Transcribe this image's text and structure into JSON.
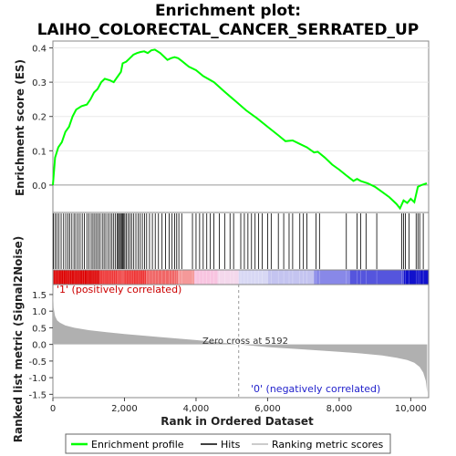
{
  "chart_data": {
    "type": "line",
    "title_line1": "Enrichment plot:",
    "title_line2": "LAIHO_COLORECTAL_CANCER_SERRATED_UP",
    "xlabel": "Rank in Ordered Dataset",
    "ylabel_es": "Enrichment score (ES)",
    "ylabel_metric": "Ranked list metric (Signal2Noise)",
    "xlim": [
      0,
      10500
    ],
    "es_ylim": [
      -0.08,
      0.42
    ],
    "metric_ylim": [
      -1.6,
      1.8
    ],
    "x_ticks": [
      0,
      2000,
      4000,
      6000,
      8000,
      10000
    ],
    "x_tick_labels": [
      "0",
      "2,000",
      "4,000",
      "6,000",
      "8,000",
      "10,000"
    ],
    "es_ticks": [
      0.0,
      0.1,
      0.2,
      0.3,
      0.4
    ],
    "es_tick_labels": [
      "0.0",
      "0.1",
      "0.2",
      "0.3",
      "0.4"
    ],
    "metric_ticks": [
      -1.5,
      -1.0,
      -0.5,
      0.0,
      0.5,
      1.0,
      1.5
    ],
    "metric_tick_labels": [
      "-1.5",
      "-1.0",
      "-0.5",
      "0.0",
      "0.5",
      "1.0",
      "1.5"
    ],
    "zero_cross": 5192,
    "zero_cross_label": "Zero cross at 5192",
    "pos_label": "'1' (positively correlated)",
    "neg_label": "'0' (negatively correlated)",
    "es_curve": {
      "x": [
        0,
        60,
        150,
        250,
        350,
        450,
        550,
        650,
        800,
        950,
        1050,
        1150,
        1250,
        1350,
        1450,
        1600,
        1700,
        1800,
        1900,
        1950,
        2050,
        2150,
        2250,
        2350,
        2450,
        2550,
        2650,
        2750,
        2850,
        3000,
        3100,
        3200,
        3300,
        3400,
        3500,
        3600,
        3800,
        4000,
        4200,
        4500,
        4800,
        5100,
        5400,
        5700,
        6000,
        6300,
        6500,
        6700,
        6900,
        7100,
        7300,
        7400,
        7600,
        7800,
        8000,
        8200,
        8400,
        8500,
        8600,
        8800,
        9000,
        9200,
        9400,
        9600,
        9700,
        9800,
        9900,
        10000,
        10100,
        10200,
        10300,
        10450
      ],
      "y": [
        0.0,
        0.08,
        0.11,
        0.125,
        0.155,
        0.17,
        0.2,
        0.22,
        0.23,
        0.235,
        0.25,
        0.27,
        0.28,
        0.3,
        0.31,
        0.305,
        0.3,
        0.315,
        0.33,
        0.355,
        0.36,
        0.37,
        0.38,
        0.385,
        0.388,
        0.39,
        0.385,
        0.393,
        0.395,
        0.385,
        0.375,
        0.365,
        0.37,
        0.373,
        0.37,
        0.362,
        0.345,
        0.335,
        0.318,
        0.3,
        0.272,
        0.245,
        0.218,
        0.195,
        0.17,
        0.145,
        0.128,
        0.13,
        0.12,
        0.11,
        0.095,
        0.097,
        0.08,
        0.06,
        0.045,
        0.028,
        0.012,
        0.018,
        0.012,
        0.005,
        -0.005,
        -0.02,
        -0.035,
        -0.055,
        -0.068,
        -0.045,
        -0.052,
        -0.04,
        -0.05,
        -0.005,
        0.0,
        0.005
      ]
    },
    "hits": [
      15,
      60,
      110,
      170,
      230,
      300,
      360,
      420,
      470,
      530,
      590,
      640,
      700,
      760,
      820,
      880,
      950,
      1010,
      1070,
      1120,
      1170,
      1220,
      1270,
      1320,
      1380,
      1430,
      1480,
      1540,
      1600,
      1650,
      1700,
      1750,
      1800,
      1830,
      1860,
      1890,
      1920,
      1950,
      1980,
      2010,
      2050,
      2100,
      2150,
      2200,
      2260,
      2320,
      2380,
      2440,
      2500,
      2560,
      2620,
      2700,
      2780,
      2860,
      2950,
      3050,
      3150,
      3250,
      3330,
      3400,
      3460,
      3520,
      3600,
      3900,
      4000,
      4100,
      4200,
      4300,
      4400,
      4500,
      4650,
      4800,
      4950,
      5050,
      5250,
      5350,
      5450,
      5550,
      5650,
      5750,
      5850,
      6000,
      6100,
      6300,
      6450,
      6600,
      6700,
      6900,
      7000,
      7100,
      7350,
      7450,
      8200,
      8500,
      8600,
      8750,
      9050,
      9750,
      9800,
      9850,
      9950,
      10150,
      10200,
      10250,
      10350
    ],
    "colorbar": {
      "segments": [
        {
          "from": 0,
          "to": 1300,
          "color": "#dd0000"
        },
        {
          "from": 1300,
          "to": 2600,
          "color": "#ee3333"
        },
        {
          "from": 2600,
          "to": 3500,
          "color": "#f06666"
        },
        {
          "from": 3500,
          "to": 3950,
          "color": "#f59999"
        },
        {
          "from": 3950,
          "to": 4600,
          "color": "#f8c4e0"
        },
        {
          "from": 4600,
          "to": 5192,
          "color": "#f4d8ec"
        },
        {
          "from": 5192,
          "to": 6000,
          "color": "#d8d8f4"
        },
        {
          "from": 6000,
          "to": 7300,
          "color": "#c4c4f0"
        },
        {
          "from": 7300,
          "to": 8300,
          "color": "#8888e8"
        },
        {
          "from": 8300,
          "to": 9800,
          "color": "#5555dd"
        },
        {
          "from": 9800,
          "to": 10500,
          "color": "#1111cc"
        }
      ]
    },
    "metric_curve": {
      "x": [
        0,
        20,
        60,
        120,
        200,
        350,
        600,
        1000,
        1500,
        2000,
        3000,
        4000,
        5192,
        6000,
        7000,
        8000,
        8600,
        9200,
        9600,
        9900,
        10100,
        10250,
        10350,
        10420,
        10460
      ],
      "y": [
        1.7,
        1.1,
        0.85,
        0.72,
        0.65,
        0.57,
        0.5,
        0.43,
        0.37,
        0.31,
        0.22,
        0.13,
        0.0,
        -0.08,
        -0.15,
        -0.22,
        -0.27,
        -0.33,
        -0.4,
        -0.47,
        -0.55,
        -0.68,
        -0.85,
        -1.1,
        -1.45
      ]
    },
    "legend": [
      "Enrichment profile",
      "Hits",
      "Ranking metric scores"
    ],
    "colors": {
      "es_line": "#00ff00",
      "hits": "#000000",
      "metric_fill": "#b0b0b0",
      "pos_label": "#cc0000",
      "neg_label": "#2222cc",
      "zero_line": "#999999"
    }
  }
}
